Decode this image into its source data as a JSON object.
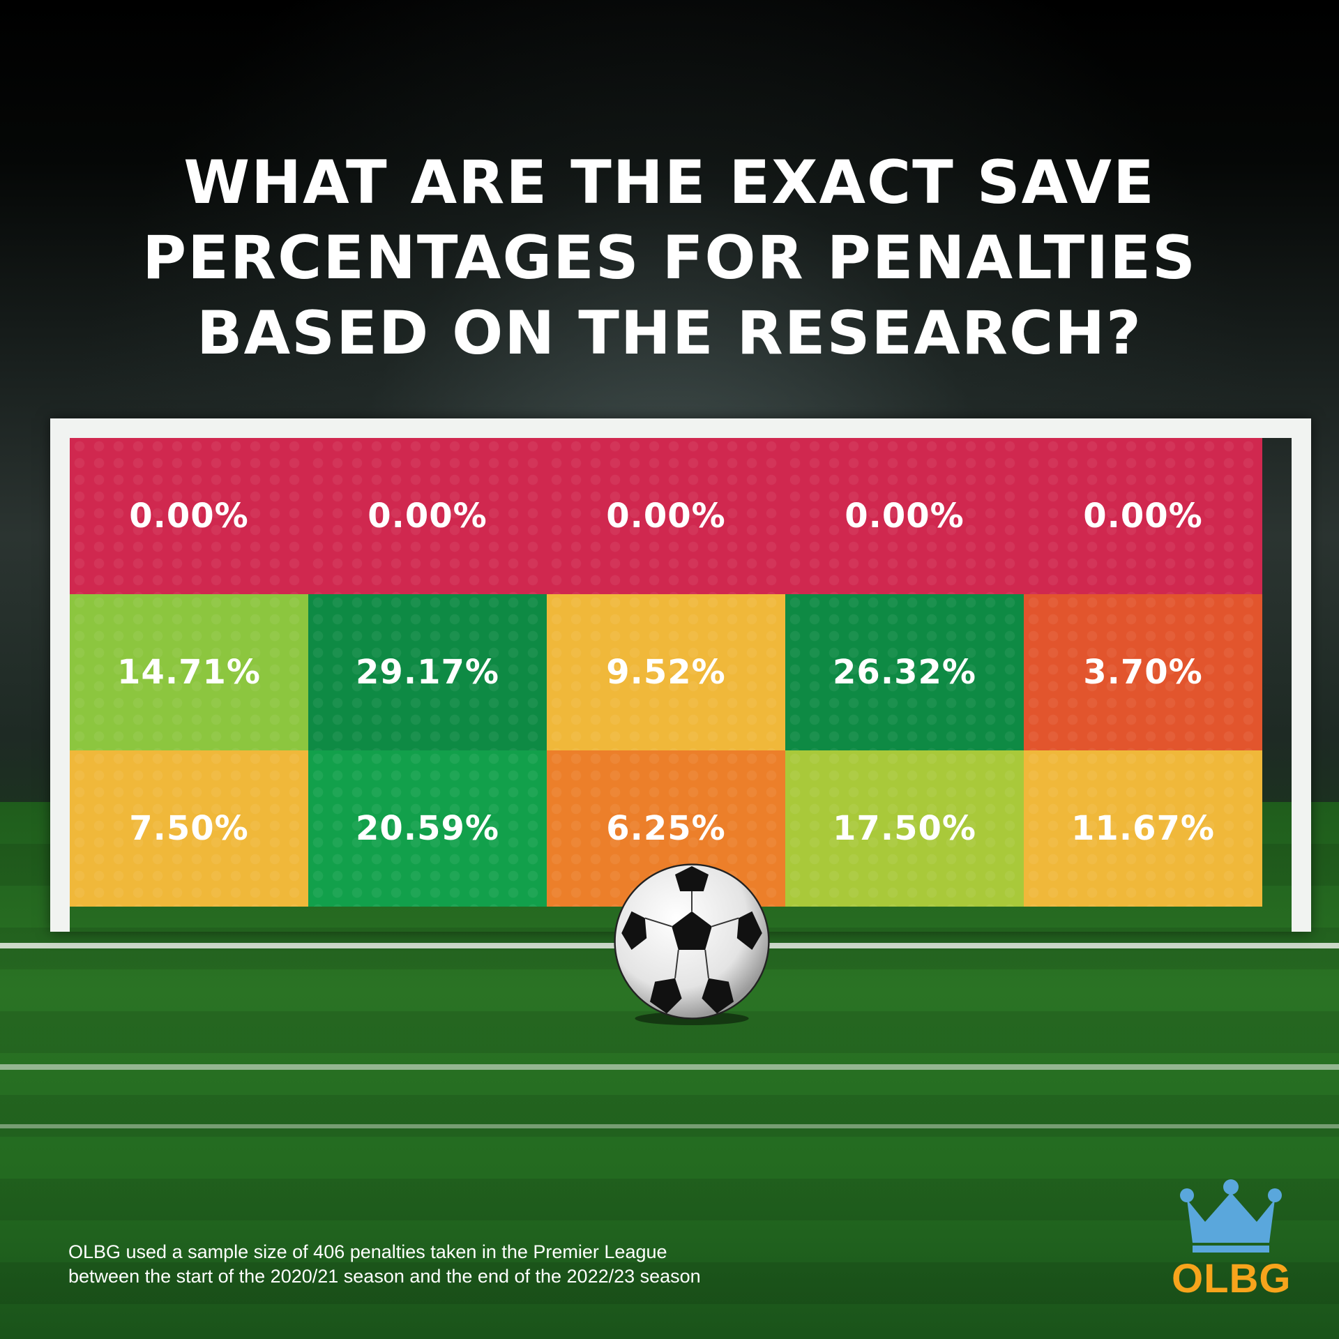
{
  "title_lines": [
    "WHAT ARE THE EXACT SAVE",
    "PERCENTAGES FOR PENALTIES",
    "BASED ON THE RESEARCH?"
  ],
  "footnote_lines": [
    "OLBG used a sample size of 406 penalties taken in the Premier League",
    "between the start of the 2020/21 season and the end of the 2022/23 season"
  ],
  "logo": {
    "text": "OLBG",
    "icon": "crown-icon",
    "crown_color": "#5aa7dc",
    "text_color": "#f7a41c"
  },
  "colors": {
    "red": "#d0284f",
    "lime": "#8cc63f",
    "dark_green": "#0e8a44",
    "green": "#12a04b",
    "yellow": "#f0b83a",
    "orange": "#ec7f2a",
    "red_orange": "#e2552d",
    "yellow_green": "#a9c93a"
  },
  "chart_data": {
    "type": "heatmap",
    "title": "WHAT ARE THE EXACT SAVE PERCENTAGES FOR PENALTIES BASED ON THE RESEARCH?",
    "rows": 3,
    "columns": 5,
    "values": [
      [
        0.0,
        0.0,
        0.0,
        0.0,
        0.0
      ],
      [
        14.71,
        29.17,
        9.52,
        26.32,
        3.7
      ],
      [
        7.5,
        20.59,
        6.25,
        17.5,
        11.67
      ]
    ],
    "labels": [
      [
        "0.00%",
        "0.00%",
        "0.00%",
        "0.00%",
        "0.00%"
      ],
      [
        "14.71%",
        "29.17%",
        "9.52%",
        "26.32%",
        "3.70%"
      ],
      [
        "7.50%",
        "20.59%",
        "6.25%",
        "17.50%",
        "11.67%"
      ]
    ],
    "cell_colors": [
      [
        "#d0284f",
        "#d0284f",
        "#d0284f",
        "#d0284f",
        "#d0284f"
      ],
      [
        "#8cc63f",
        "#0e8a44",
        "#f0b83a",
        "#0e8a44",
        "#e2552d"
      ],
      [
        "#f0b83a",
        "#12a04b",
        "#ec7f2a",
        "#a9c93a",
        "#f0b83a"
      ]
    ]
  }
}
